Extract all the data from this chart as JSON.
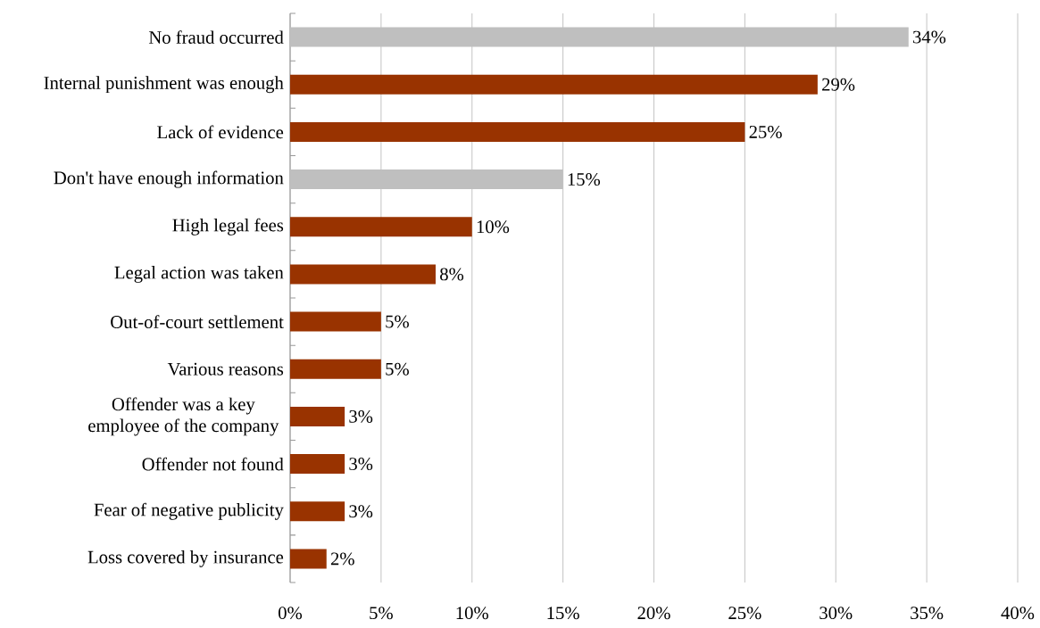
{
  "chart_data": {
    "type": "bar",
    "orientation": "horizontal",
    "categories": [
      "No fraud occurred",
      "Internal punishment was enough",
      "Lack of evidence",
      "Don't have enough information",
      "High legal fees",
      "Legal action was taken",
      "Out-of-court settlement",
      "Various reasons",
      "Offender was a key employee of the company",
      "Offender not found",
      "Fear of negative publicity",
      "Loss covered by insurance"
    ],
    "values": [
      34,
      29,
      25,
      15,
      10,
      8,
      5,
      5,
      3,
      3,
      3,
      2
    ],
    "value_labels": [
      "34%",
      "29%",
      "25%",
      "15%",
      "10%",
      "8%",
      "5%",
      "5%",
      "3%",
      "3%",
      "3%",
      "2%"
    ],
    "colors": [
      "#bfbfbf",
      "#993300",
      "#993300",
      "#bfbfbf",
      "#993300",
      "#993300",
      "#993300",
      "#993300",
      "#993300",
      "#993300",
      "#993300",
      "#993300"
    ],
    "xlim": [
      0,
      40
    ],
    "xticks": [
      {
        "value": 0,
        "label": "0%"
      },
      {
        "value": 5,
        "label": "5%"
      },
      {
        "value": 10,
        "label": "10%"
      },
      {
        "value": 15,
        "label": "15%"
      },
      {
        "value": 20,
        "label": "20%"
      },
      {
        "value": 25,
        "label": "25%"
      },
      {
        "value": 30,
        "label": "30%"
      },
      {
        "value": 35,
        "label": "35%"
      },
      {
        "value": 40,
        "label": "40%"
      }
    ],
    "grid": "x"
  }
}
